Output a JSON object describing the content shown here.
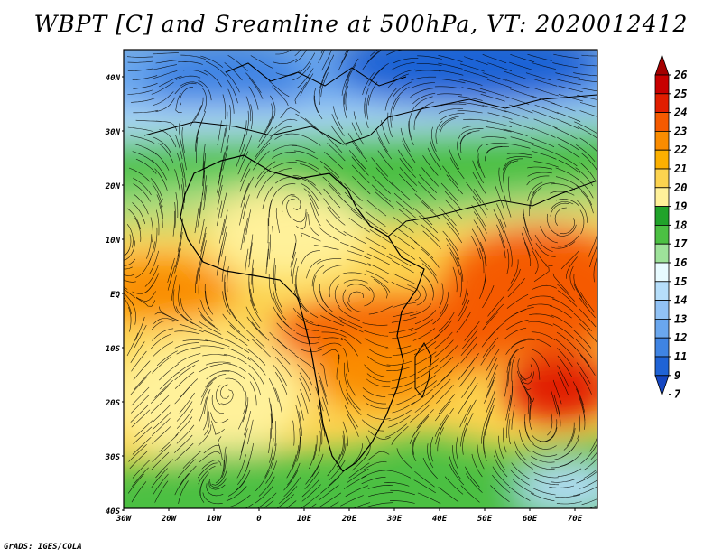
{
  "title": "WBPT [C] and Sreamline at 500hPa, VT: 2020012412",
  "footer": "GrADS: IGES/COLA",
  "map": {
    "lat_labels": [
      "40N",
      "30N",
      "20N",
      "10N",
      "EQ",
      "10S",
      "20S",
      "30S",
      "40S"
    ],
    "lon_labels": [
      "30W",
      "20W",
      "10W",
      "0",
      "10E",
      "20E",
      "30E",
      "40E",
      "50E",
      "60E",
      "70E"
    ],
    "lon_range": [
      -30,
      75
    ],
    "lat_range": [
      -40,
      45
    ]
  },
  "colorbar": {
    "labels": [
      "26",
      "25",
      "24",
      "23",
      "22",
      "21",
      "20",
      "19",
      "18",
      "17",
      "16",
      "15",
      "14",
      "13",
      "12",
      "11",
      "9",
      "7"
    ],
    "colors": [
      "#a50000",
      "#c80000",
      "#e11e00",
      "#f55a00",
      "#fa8c00",
      "#fcb000",
      "#fcd34f",
      "#fff19a",
      "#21a32a",
      "#4cc043",
      "#9ee29a",
      "#e8fbff",
      "#b6defa",
      "#91c2f5",
      "#6aa7ee",
      "#3f84e3",
      "#1f63d6",
      "#1446c2"
    ]
  },
  "legend_map_colors": {
    "deep_blue": "#1f63d6",
    "blue": "#6aa7ee",
    "light_blue": "#b6defa",
    "green": "#4cc043",
    "light_green": "#9ee29a",
    "pale_yellow": "#fff19a",
    "tan": "#fcd34f",
    "orange": "#fa8c00",
    "red_orange": "#e11e00"
  }
}
